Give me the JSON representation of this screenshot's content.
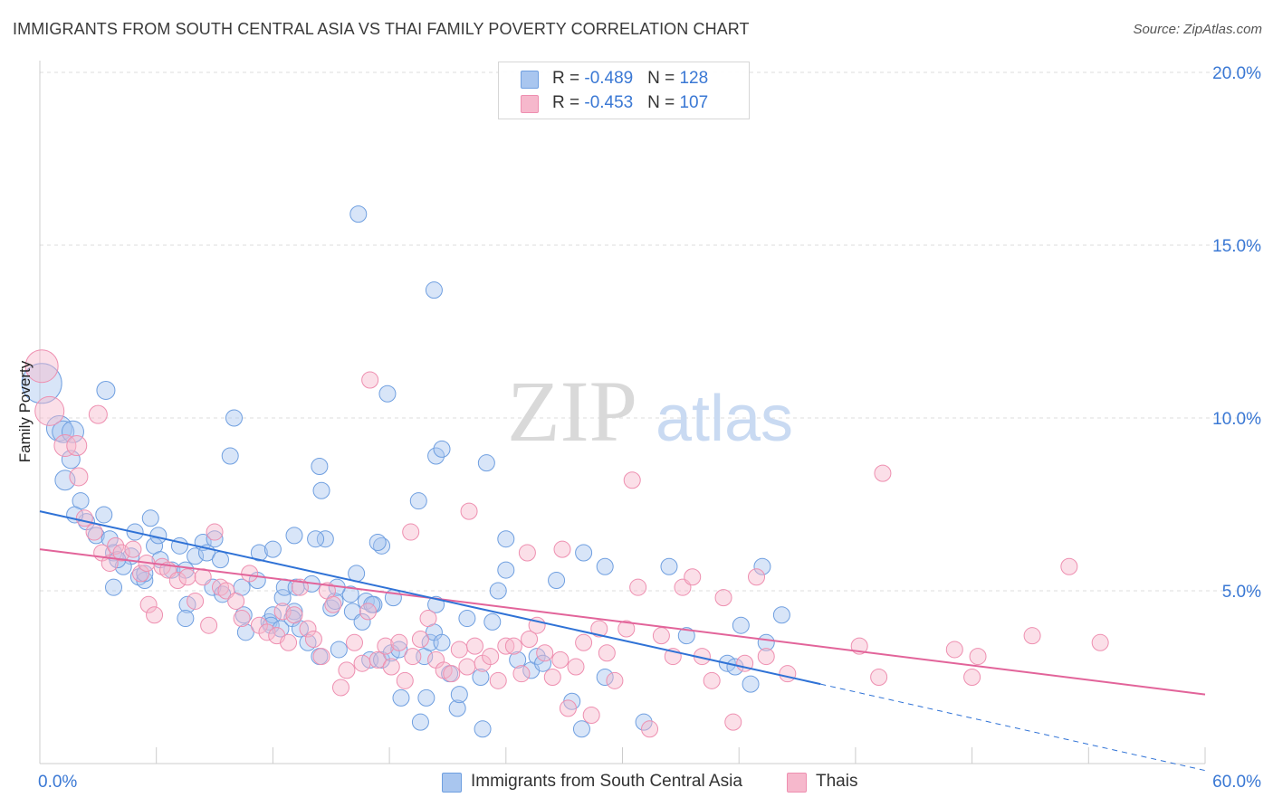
{
  "title": "IMMIGRANTS FROM SOUTH CENTRAL ASIA VS THAI FAMILY POVERTY CORRELATION CHART",
  "source": "Source: ZipAtlas.com",
  "watermark": {
    "zip": "ZIP",
    "atlas": "atlas"
  },
  "legend": {
    "rows": [
      {
        "r_label": "R = ",
        "r_value": "-0.489",
        "n_label": "N = ",
        "n_value": "128"
      },
      {
        "r_label": "R = ",
        "r_value": "-0.453",
        "n_label": "N = ",
        "n_value": "107"
      }
    ]
  },
  "colors": {
    "blue_fill": "#a9c6ef",
    "blue_stroke": "#6f9fe0",
    "blue_line": "#2f72d6",
    "pink_fill": "#f6b8cc",
    "pink_stroke": "#ee8fb0",
    "pink_line": "#e2649a",
    "axis_text": "#3a78d4",
    "grid": "#dddddd"
  },
  "chart_data": {
    "type": "scatter",
    "title": "IMMIGRANTS FROM SOUTH CENTRAL ASIA VS THAI FAMILY POVERTY CORRELATION CHART",
    "xlabel": "",
    "ylabel": "Family Poverty",
    "xlim": [
      0,
      60
    ],
    "ylim": [
      0,
      20
    ],
    "x_tick_labels": [
      {
        "value": 0,
        "label": "0.0%"
      },
      {
        "value": 60,
        "label": "60.0%"
      }
    ],
    "y_tick_labels": [
      {
        "value": 5,
        "label": "5.0%"
      },
      {
        "value": 10,
        "label": "10.0%"
      },
      {
        "value": 15,
        "label": "15.0%"
      },
      {
        "value": 20,
        "label": "20.0%"
      }
    ],
    "series": [
      {
        "name": "Immigrants from South Central Asia",
        "color": "#6f9fe0",
        "trend": {
          "x0": 0,
          "y0": 7.3,
          "x1": 40.2,
          "y1": 2.3,
          "dashed_to_x": 60,
          "dashed_to_y": -0.2
        },
        "points": [
          [
            0.1,
            11.0,
            22
          ],
          [
            1.0,
            9.7,
            14
          ],
          [
            1.2,
            9.6,
            12
          ],
          [
            1.6,
            8.8,
            10
          ],
          [
            1.3,
            8.2,
            11
          ],
          [
            3.4,
            10.8,
            10
          ],
          [
            1.7,
            9.6,
            12
          ],
          [
            2.1,
            7.6,
            9
          ],
          [
            2.4,
            7.0,
            9
          ],
          [
            3.3,
            7.2,
            9
          ],
          [
            1.8,
            7.2,
            9
          ],
          [
            2.9,
            6.6,
            9
          ],
          [
            3.6,
            6.5,
            9
          ],
          [
            5.7,
            7.1,
            9
          ],
          [
            4.9,
            6.7,
            9
          ],
          [
            4.7,
            6.0,
            9
          ],
          [
            5.1,
            5.4,
            9
          ],
          [
            5.4,
            5.3,
            9
          ],
          [
            3.8,
            5.1,
            9
          ],
          [
            4.3,
            5.7,
            9
          ],
          [
            5.4,
            5.5,
            9
          ],
          [
            6.8,
            5.6,
            9
          ],
          [
            7.5,
            5.6,
            9
          ],
          [
            5.9,
            6.3,
            9
          ],
          [
            6.2,
            5.9,
            9
          ],
          [
            7.2,
            6.3,
            9
          ],
          [
            8.0,
            6.0,
            9
          ],
          [
            8.4,
            6.4,
            9
          ],
          [
            9.0,
            6.5,
            9
          ],
          [
            8.6,
            6.1,
            9
          ],
          [
            9.3,
            5.9,
            9
          ],
          [
            7.6,
            4.6,
            9
          ],
          [
            7.5,
            4.2,
            9
          ],
          [
            8.9,
            5.1,
            9
          ],
          [
            9.4,
            4.9,
            9
          ],
          [
            10.4,
            5.1,
            9
          ],
          [
            10.5,
            4.3,
            9
          ],
          [
            10.6,
            3.8,
            9
          ],
          [
            11.2,
            5.3,
            9
          ],
          [
            11.3,
            6.1,
            9
          ],
          [
            11.8,
            4.1,
            9
          ],
          [
            12.0,
            4.3,
            9
          ],
          [
            11.9,
            4.0,
            9
          ],
          [
            12.4,
            3.9,
            9
          ],
          [
            12.5,
            4.8,
            9
          ],
          [
            12.6,
            5.1,
            9
          ],
          [
            13.1,
            4.4,
            9
          ],
          [
            13.0,
            4.2,
            9
          ],
          [
            13.4,
            3.9,
            9
          ],
          [
            13.8,
            3.5,
            9
          ],
          [
            13.2,
            5.1,
            9
          ],
          [
            14.0,
            5.2,
            9
          ],
          [
            14.4,
            3.1,
            9
          ],
          [
            14.7,
            6.5,
            9
          ],
          [
            15.0,
            4.5,
            9
          ],
          [
            15.2,
            4.7,
            9
          ],
          [
            15.4,
            3.3,
            9
          ],
          [
            16.1,
            4.4,
            9
          ],
          [
            16.3,
            5.5,
            9
          ],
          [
            16.6,
            4.1,
            9
          ],
          [
            16.8,
            4.7,
            9
          ],
          [
            17.2,
            4.6,
            9
          ],
          [
            17.0,
            3.0,
            9
          ],
          [
            17.6,
            3.0,
            9
          ],
          [
            17.1,
            4.6,
            9
          ],
          [
            17.6,
            6.3,
            9
          ],
          [
            16.0,
            4.9,
            9
          ],
          [
            18.1,
            3.2,
            9
          ],
          [
            18.5,
            3.3,
            9
          ],
          [
            18.2,
            4.8,
            9
          ],
          [
            18.6,
            1.9,
            9
          ],
          [
            19.6,
            1.2,
            9
          ],
          [
            19.9,
            1.9,
            9
          ],
          [
            19.8,
            3.1,
            9
          ],
          [
            20.1,
            3.5,
            9
          ],
          [
            20.3,
            3.8,
            9
          ],
          [
            20.4,
            4.6,
            9
          ],
          [
            20.7,
            3.5,
            9
          ],
          [
            21.1,
            2.6,
            9
          ],
          [
            21.5,
            1.6,
            9
          ],
          [
            21.6,
            2.0,
            9
          ],
          [
            22.0,
            4.2,
            9
          ],
          [
            22.8,
            1.0,
            9
          ],
          [
            22.7,
            2.5,
            9
          ],
          [
            23.3,
            4.1,
            9
          ],
          [
            23.6,
            5.0,
            9
          ],
          [
            24.0,
            5.6,
            9
          ],
          [
            24.6,
            3.0,
            9
          ],
          [
            25.3,
            2.7,
            9
          ],
          [
            25.6,
            3.1,
            9
          ],
          [
            25.9,
            2.9,
            9
          ],
          [
            26.6,
            5.3,
            9
          ],
          [
            27.4,
            1.8,
            9
          ],
          [
            27.9,
            1.0,
            9
          ],
          [
            28.0,
            6.1,
            9
          ],
          [
            29.1,
            2.5,
            9
          ],
          [
            29.1,
            5.7,
            9
          ],
          [
            31.1,
            1.2,
            9
          ],
          [
            32.4,
            5.7,
            9
          ],
          [
            33.3,
            3.7,
            9
          ],
          [
            35.4,
            2.9,
            9
          ],
          [
            35.8,
            2.8,
            9
          ],
          [
            36.1,
            4.0,
            9
          ],
          [
            36.6,
            2.3,
            9
          ],
          [
            37.2,
            5.7,
            9
          ],
          [
            37.4,
            3.5,
            9
          ],
          [
            38.2,
            4.3,
            9
          ],
          [
            10.0,
            10.0,
            9
          ],
          [
            9.8,
            8.9,
            9
          ],
          [
            14.4,
            8.6,
            9
          ],
          [
            14.5,
            7.9,
            9
          ],
          [
            15.3,
            5.1,
            9
          ],
          [
            17.4,
            6.4,
            9
          ],
          [
            17.9,
            10.7,
            9
          ],
          [
            19.5,
            7.6,
            9
          ],
          [
            20.4,
            8.9,
            9
          ],
          [
            20.7,
            9.1,
            9
          ],
          [
            23.0,
            8.7,
            9
          ],
          [
            24.0,
            6.5,
            9
          ],
          [
            16.4,
            15.9,
            9
          ],
          [
            20.3,
            13.7,
            9
          ],
          [
            3.8,
            6.1,
            9
          ],
          [
            4.0,
            5.9,
            9
          ],
          [
            6.1,
            6.6,
            9
          ],
          [
            12.0,
            6.2,
            9
          ],
          [
            13.1,
            6.6,
            9
          ],
          [
            14.2,
            6.5,
            9
          ]
        ]
      },
      {
        "name": "Thais",
        "color": "#ee8fb0",
        "trend": {
          "x0": 0,
          "y0": 6.2,
          "x1": 60,
          "y1": 2.0
        },
        "points": [
          [
            0.1,
            11.5,
            18
          ],
          [
            0.5,
            10.2,
            16
          ],
          [
            1.3,
            9.2,
            12
          ],
          [
            1.9,
            9.2,
            11
          ],
          [
            2.0,
            8.3,
            10
          ],
          [
            3.0,
            10.1,
            10
          ],
          [
            2.3,
            7.1,
            9
          ],
          [
            2.8,
            6.7,
            9
          ],
          [
            3.2,
            6.1,
            9
          ],
          [
            3.6,
            5.8,
            9
          ],
          [
            3.9,
            6.3,
            9
          ],
          [
            4.2,
            6.1,
            9
          ],
          [
            4.8,
            6.2,
            9
          ],
          [
            5.2,
            5.5,
            9
          ],
          [
            5.5,
            5.8,
            9
          ],
          [
            5.6,
            4.6,
            9
          ],
          [
            5.9,
            4.3,
            9
          ],
          [
            6.3,
            5.7,
            9
          ],
          [
            6.6,
            5.6,
            9
          ],
          [
            7.1,
            5.3,
            9
          ],
          [
            7.6,
            5.4,
            9
          ],
          [
            8.0,
            4.7,
            9
          ],
          [
            8.4,
            5.4,
            9
          ],
          [
            8.7,
            4.0,
            9
          ],
          [
            9.0,
            6.7,
            9
          ],
          [
            9.3,
            5.1,
            9
          ],
          [
            9.6,
            5.0,
            9
          ],
          [
            10.1,
            4.7,
            9
          ],
          [
            10.4,
            4.2,
            9
          ],
          [
            10.8,
            5.5,
            9
          ],
          [
            11.3,
            4.0,
            9
          ],
          [
            11.7,
            3.8,
            9
          ],
          [
            12.2,
            3.7,
            9
          ],
          [
            12.5,
            4.4,
            9
          ],
          [
            12.8,
            3.5,
            9
          ],
          [
            13.1,
            4.3,
            9
          ],
          [
            13.4,
            5.1,
            9
          ],
          [
            13.8,
            3.9,
            9
          ],
          [
            14.1,
            3.6,
            9
          ],
          [
            14.5,
            3.1,
            9
          ],
          [
            14.8,
            5.0,
            9
          ],
          [
            15.1,
            4.6,
            9
          ],
          [
            15.5,
            2.2,
            9
          ],
          [
            15.8,
            2.7,
            9
          ],
          [
            16.2,
            3.5,
            9
          ],
          [
            16.6,
            2.9,
            9
          ],
          [
            16.9,
            4.4,
            9
          ],
          [
            17.4,
            3.0,
            9
          ],
          [
            17.8,
            3.4,
            9
          ],
          [
            18.1,
            2.8,
            9
          ],
          [
            18.5,
            3.5,
            9
          ],
          [
            18.8,
            2.4,
            9
          ],
          [
            19.2,
            3.1,
            9
          ],
          [
            19.6,
            3.6,
            9
          ],
          [
            20.0,
            4.2,
            9
          ],
          [
            20.4,
            3.0,
            9
          ],
          [
            20.8,
            2.7,
            9
          ],
          [
            21.2,
            2.6,
            9
          ],
          [
            21.6,
            3.3,
            9
          ],
          [
            22.0,
            2.8,
            9
          ],
          [
            22.4,
            3.4,
            9
          ],
          [
            22.8,
            2.9,
            9
          ],
          [
            23.2,
            3.1,
            9
          ],
          [
            23.6,
            2.4,
            9
          ],
          [
            24.0,
            3.4,
            9
          ],
          [
            24.4,
            3.4,
            9
          ],
          [
            24.8,
            2.6,
            9
          ],
          [
            25.2,
            3.6,
            9
          ],
          [
            25.6,
            4.0,
            9
          ],
          [
            26.0,
            3.2,
            9
          ],
          [
            26.4,
            2.5,
            9
          ],
          [
            26.8,
            3.0,
            9
          ],
          [
            27.2,
            1.6,
            9
          ],
          [
            27.6,
            2.8,
            9
          ],
          [
            28.0,
            3.5,
            9
          ],
          [
            28.4,
            1.4,
            9
          ],
          [
            28.8,
            3.9,
            9
          ],
          [
            29.2,
            3.2,
            9
          ],
          [
            29.6,
            2.4,
            9
          ],
          [
            30.2,
            3.9,
            9
          ],
          [
            30.8,
            5.1,
            9
          ],
          [
            31.4,
            1.0,
            9
          ],
          [
            32.0,
            3.7,
            9
          ],
          [
            32.6,
            3.1,
            9
          ],
          [
            33.1,
            5.1,
            9
          ],
          [
            33.6,
            5.4,
            9
          ],
          [
            34.1,
            3.1,
            9
          ],
          [
            34.6,
            2.4,
            9
          ],
          [
            35.2,
            4.8,
            9
          ],
          [
            35.7,
            1.2,
            9
          ],
          [
            36.3,
            2.9,
            9
          ],
          [
            36.9,
            5.4,
            9
          ],
          [
            37.4,
            3.1,
            9
          ],
          [
            38.5,
            2.6,
            9
          ],
          [
            42.2,
            3.4,
            9
          ],
          [
            43.2,
            2.5,
            9
          ],
          [
            47.1,
            3.3,
            9
          ],
          [
            48.0,
            2.5,
            9
          ],
          [
            48.3,
            3.1,
            9
          ],
          [
            51.1,
            3.7,
            9
          ],
          [
            53.0,
            5.7,
            9
          ],
          [
            54.6,
            3.5,
            9
          ],
          [
            25.1,
            6.1,
            9
          ],
          [
            26.9,
            6.2,
            9
          ],
          [
            30.5,
            8.2,
            9
          ],
          [
            43.4,
            8.4,
            9
          ],
          [
            19.1,
            6.7,
            9
          ],
          [
            22.1,
            7.3,
            9
          ],
          [
            17.0,
            11.1,
            9
          ]
        ]
      }
    ]
  },
  "bottom_legend": [
    {
      "label": "Immigrants from South Central Asia"
    },
    {
      "label": "Thais"
    }
  ]
}
